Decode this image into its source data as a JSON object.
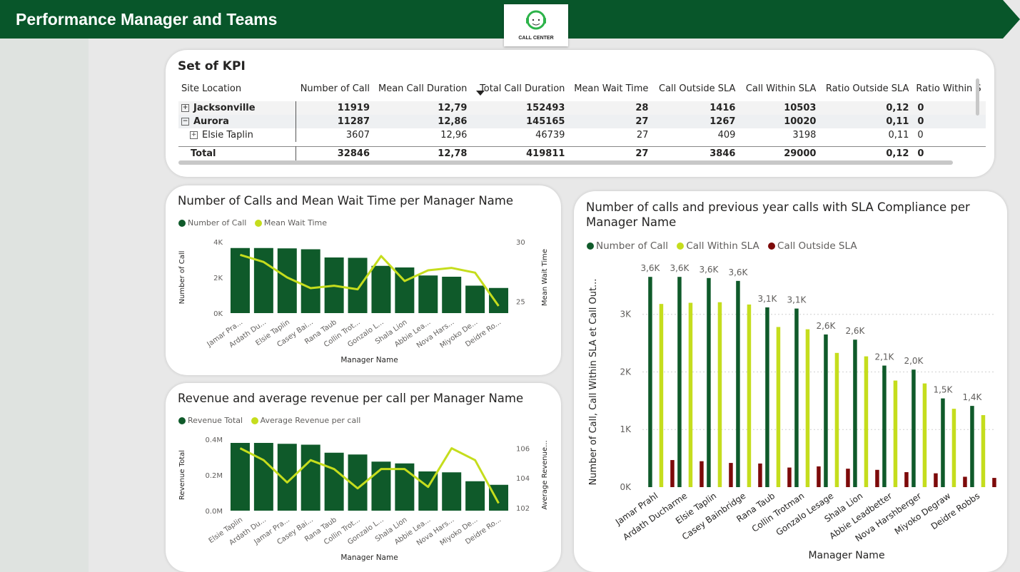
{
  "header": {
    "title": "Performance Manager and Teams",
    "logo_text": "CALL CENTER"
  },
  "colors": {
    "dark_green": "#0f5a2a",
    "lime": "#c5dd1d",
    "dark_red": "#7d0a0a",
    "header_green": "#08562a"
  },
  "kpi_table": {
    "title": "Set of KPI",
    "columns": [
      "Site Location",
      "Number of Call",
      "Mean Call Duration",
      "Total Call Duration",
      "Mean Wait Time",
      "Call Outside SLA",
      "Call Within SLA",
      "Ratio Outside SLA",
      "Ratio Within S"
    ],
    "rows": [
      {
        "label": "Jacksonville",
        "expander": "+",
        "level": 0,
        "bold": true,
        "values": [
          "11919",
          "12,79",
          "152493",
          "28",
          "1416",
          "10503",
          "0,12",
          "0"
        ]
      },
      {
        "label": "Aurora",
        "expander": "−",
        "level": 0,
        "bold": true,
        "values": [
          "11287",
          "12,86",
          "145165",
          "27",
          "1267",
          "10020",
          "0,11",
          "0"
        ]
      },
      {
        "label": "Elsie Taplin",
        "expander": "+",
        "level": 1,
        "bold": false,
        "values": [
          "3607",
          "12,96",
          "46739",
          "27",
          "409",
          "3198",
          "0,11",
          "0"
        ]
      }
    ],
    "total": {
      "label": "Total",
      "values": [
        "32846",
        "12,78",
        "419811",
        "27",
        "3846",
        "29000",
        "0,12",
        "0"
      ]
    }
  },
  "chart_data": [
    {
      "type": "bar",
      "title": "Number of Calls and Mean Wait Time per Manager Name",
      "xlabel": "Manager Name",
      "ylabel": "Number of Call",
      "y2label": "Mean Wait Time",
      "categories": [
        "Jamar Pra...",
        "Ardath Du...",
        "Elsie Taplin",
        "Casey Bai...",
        "Rana Taub",
        "Collin Trot...",
        "Gonzalo L...",
        "Shala Lion",
        "Abbie Lea...",
        "Nova Hars...",
        "Miyoko De...",
        "Deidre Ro..."
      ],
      "series": [
        {
          "name": "Number of Call",
          "type": "bar",
          "axis": "y",
          "color": "#0f5a2a",
          "values": [
            3650,
            3650,
            3630,
            3580,
            3120,
            3100,
            2650,
            2560,
            2110,
            2040,
            1540,
            1410
          ]
        },
        {
          "name": "Mean Wait Time",
          "type": "line",
          "axis": "y2",
          "color": "#c5dd1d",
          "values": [
            28.9,
            28.3,
            27.0,
            26.1,
            26.3,
            26.0,
            28.8,
            26.7,
            27.6,
            27.8,
            27.4,
            24.6
          ]
        }
      ],
      "ylim": [
        0,
        4000
      ],
      "y2lim": [
        24,
        30
      ],
      "yticks": [
        "0K",
        "2K",
        "4K"
      ],
      "y2ticks": [
        "25",
        "30"
      ],
      "legend": "top-left"
    },
    {
      "type": "bar",
      "title": "Revenue and average revenue per call per Manager Name",
      "xlabel": "Manager Name",
      "ylabel": "Revenue Total",
      "y2label": "Average Revenue...",
      "categories": [
        "Elsie Taplin",
        "Ardath Du...",
        "Jamar Pra...",
        "Casey Bai...",
        "Rana Taub",
        "Collin Trot...",
        "Gonzalo L...",
        "Shala Lion",
        "Abbie Lea...",
        "Nova Hars...",
        "Miyoko De...",
        "Deidre Ro..."
      ],
      "series": [
        {
          "name": "Revenue Total",
          "type": "bar",
          "axis": "y",
          "color": "#0f5a2a",
          "values": [
            0.38,
            0.38,
            0.375,
            0.37,
            0.325,
            0.315,
            0.275,
            0.265,
            0.22,
            0.215,
            0.165,
            0.145
          ]
        },
        {
          "name": "Average Revenue per call",
          "type": "line",
          "axis": "y2",
          "color": "#c5dd1d",
          "values": [
            106.0,
            105.2,
            103.7,
            105.2,
            104.6,
            103.3,
            104.6,
            104.6,
            103.4,
            106.0,
            105.2,
            102.3
          ]
        }
      ],
      "ylim": [
        0,
        0.4
      ],
      "y2lim": [
        101.8,
        106.6
      ],
      "yticks": [
        "0.0M",
        "0.2M",
        "0.4M"
      ],
      "y2ticks": [
        "102",
        "104",
        "106"
      ],
      "legend": "top-left"
    },
    {
      "type": "bar",
      "title": "Number of calls and previous year calls with SLA Compliance per Manager Name",
      "xlabel": "Manager Name",
      "ylabel": "Number of Call, Call Within SLA et Call Out...",
      "categories": [
        "Jamar Prahl",
        "Ardath Ducharme",
        "Elsie Taplin",
        "Casey Bainbridge",
        "Rana Taub",
        "Collin Trotman",
        "Gonzalo Lesage",
        "Shala Lion",
        "Abbie Leadbetter",
        "Nova Harshberger",
        "Miyoko Degraw",
        "Deidre Robbs"
      ],
      "series": [
        {
          "name": "Number of Call",
          "color": "#0f5a2a",
          "values": [
            3650,
            3650,
            3630,
            3580,
            3120,
            3100,
            2650,
            2560,
            2110,
            2040,
            1540,
            1410
          ]
        },
        {
          "name": "Call Within SLA",
          "color": "#c5dd1d",
          "values": [
            3180,
            3200,
            3210,
            3170,
            2780,
            2740,
            2330,
            2270,
            1850,
            1800,
            1360,
            1250
          ]
        },
        {
          "name": "Call Outside SLA",
          "color": "#7d0a0a",
          "values": [
            470,
            450,
            420,
            410,
            340,
            360,
            320,
            300,
            260,
            240,
            180,
            160
          ]
        }
      ],
      "data_labels": [
        "3,6K",
        "3,6K",
        "3,6K",
        "3,6K",
        "3,1K",
        "3,1K",
        "2,6K",
        "2,6K",
        "2,1K",
        "2,0K",
        "1,5K",
        "1,4K"
      ],
      "ylim": [
        0,
        3900
      ],
      "yticks": [
        "0K",
        "1K",
        "2K",
        "3K"
      ],
      "legend": "top-left"
    }
  ]
}
